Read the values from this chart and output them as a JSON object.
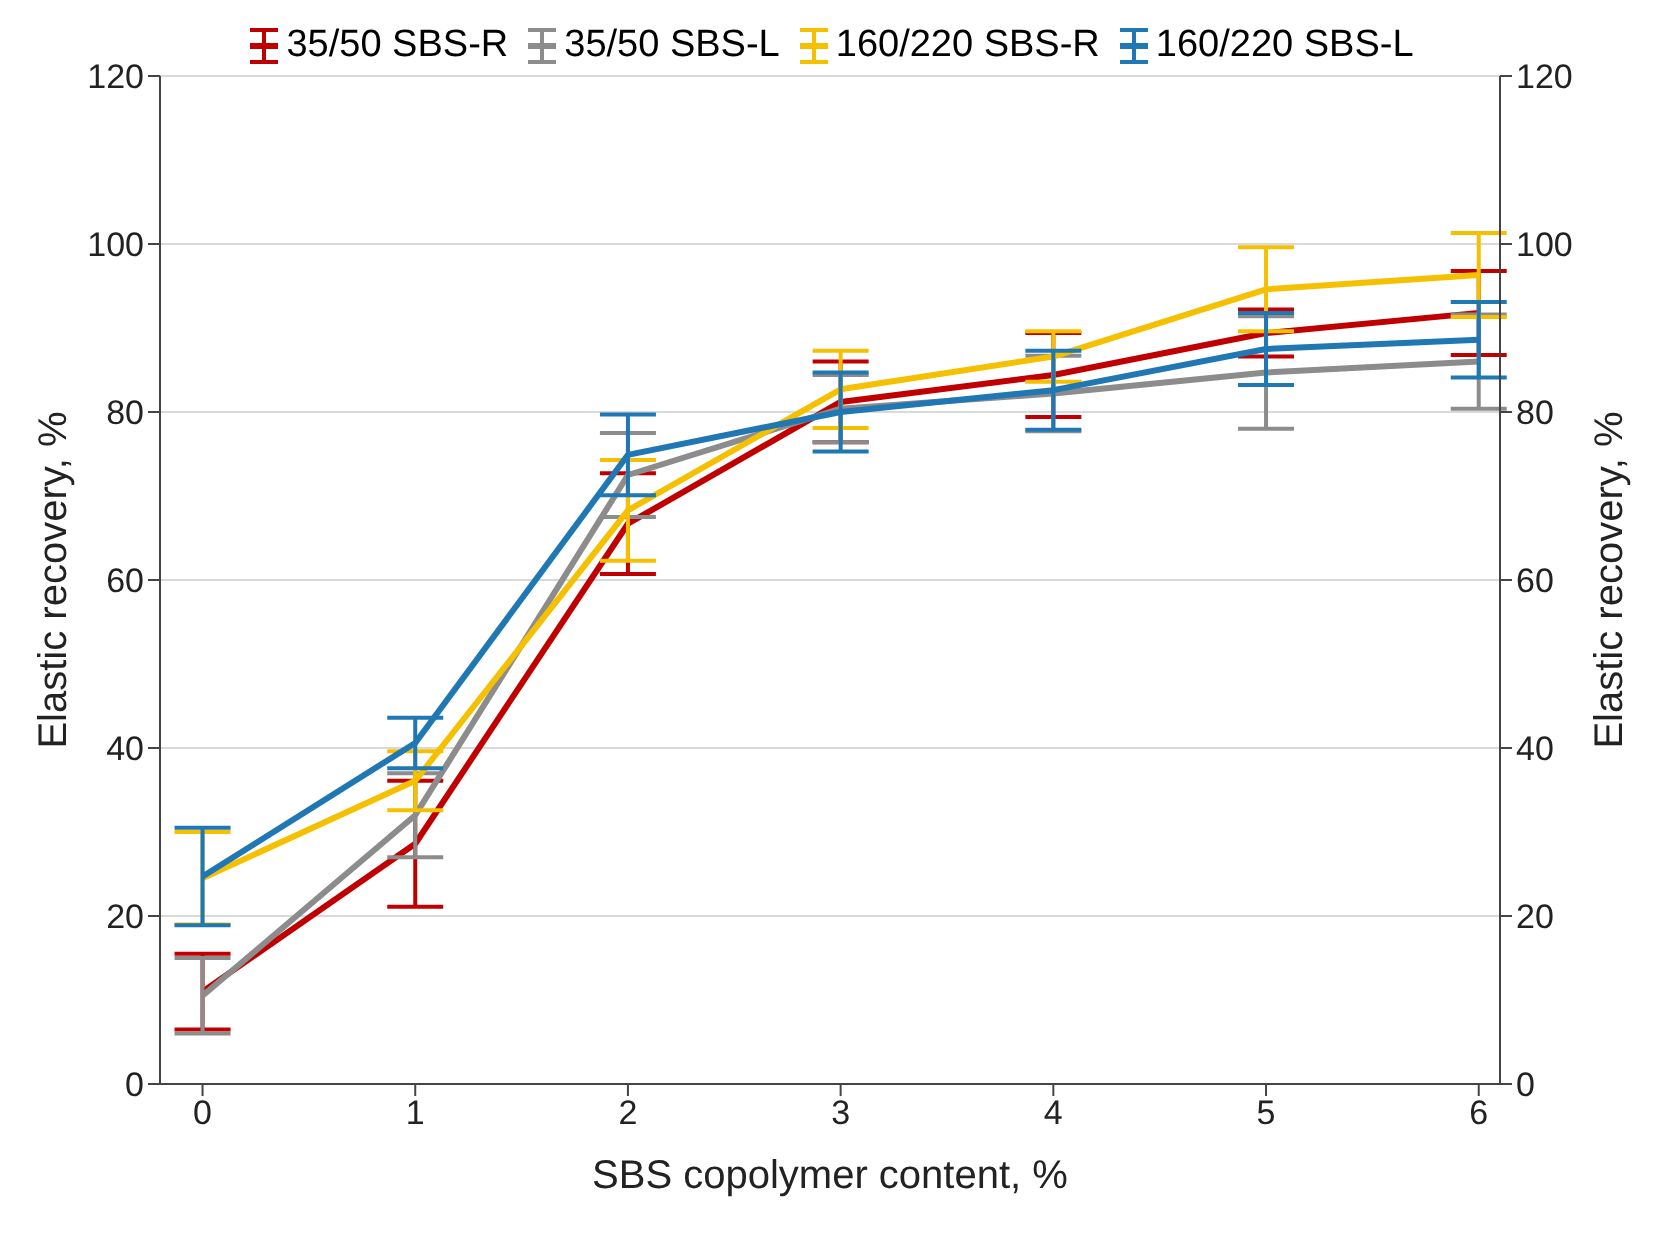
{
  "chart_data": {
    "type": "line",
    "xlabel": "SBS copolymer content, %",
    "ylabel": "Elastic recovery, %",
    "y2label": "Elastic recovery, %",
    "x": [
      0,
      1,
      2,
      3,
      4,
      5,
      6
    ],
    "xlim": [
      -0.2,
      6.1
    ],
    "xticks": [
      0,
      1,
      2,
      3,
      4,
      5,
      6
    ],
    "ylim": [
      0,
      120
    ],
    "yticks": [
      0,
      20,
      40,
      60,
      80,
      100,
      120
    ],
    "y2lim": [
      0,
      120
    ],
    "y2ticks": [
      0,
      20,
      40,
      60,
      80,
      100,
      120
    ],
    "grid": "y",
    "legend": "top",
    "marker": "none",
    "line_style": "solid",
    "series": [
      {
        "name": "35/50 SBS-R",
        "color": "#c00000",
        "values": [
          11,
          28.6,
          66.7,
          81.2,
          84.4,
          89.4,
          91.8
        ],
        "errors": [
          4.5,
          7.5,
          6,
          4.8,
          5,
          2.8,
          5
        ]
      },
      {
        "name": "35/50 SBS-L",
        "color": "#8c8c8c",
        "values": [
          10.5,
          32,
          72.5,
          80.4,
          82.2,
          84.7,
          86
        ],
        "errors": [
          4.5,
          5,
          5,
          4,
          4.5,
          6.7,
          5.6
        ]
      },
      {
        "name": "160/220 SBS-R",
        "color": "#f5c000",
        "values": [
          24.5,
          36.1,
          68.3,
          82.7,
          86.6,
          94.6,
          96.3
        ],
        "errors": [
          5.5,
          3.5,
          6,
          4.6,
          3,
          5,
          5
        ]
      },
      {
        "name": "160/220 SBS-L",
        "color": "#1f77b4",
        "values": [
          24.7,
          40.6,
          74.9,
          80,
          82.6,
          87.5,
          88.6
        ],
        "errors": [
          5.8,
          3,
          4.8,
          4.7,
          4.7,
          4.3,
          4.5
        ]
      }
    ]
  }
}
